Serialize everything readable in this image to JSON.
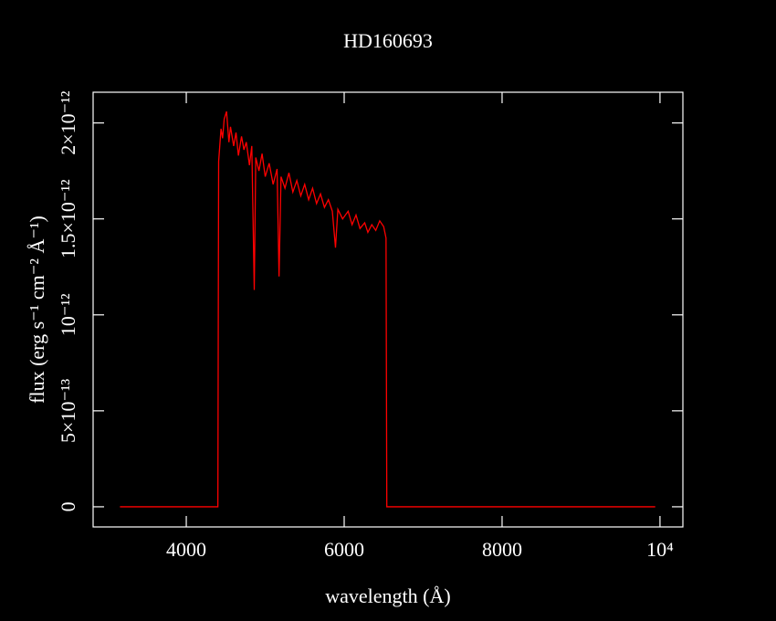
{
  "chart_data": {
    "type": "line",
    "title": "HD160693",
    "x_label": "wavelength (Å)",
    "y_label": "flux (erg s⁻¹ cm⁻² Å⁻¹)",
    "x": [
      3160,
      4400,
      4410,
      4440,
      4460,
      4480,
      4510,
      4540,
      4560,
      4600,
      4630,
      4660,
      4700,
      4730,
      4760,
      4800,
      4830,
      4861,
      4880,
      4920,
      4960,
      5000,
      5050,
      5100,
      5150,
      5175,
      5200,
      5250,
      5300,
      5350,
      5400,
      5450,
      5500,
      5550,
      5600,
      5650,
      5700,
      5750,
      5800,
      5850,
      5890,
      5920,
      5980,
      6050,
      6100,
      6150,
      6200,
      6260,
      6300,
      6350,
      6400,
      6450,
      6500,
      6530,
      6540,
      9940
    ],
    "values": [
      0,
      0,
      1.8e-12,
      1.97e-12,
      1.92e-12,
      2.02e-12,
      2.06e-12,
      1.9e-12,
      1.98e-12,
      1.88e-12,
      1.95e-12,
      1.83e-12,
      1.93e-12,
      1.86e-12,
      1.9e-12,
      1.78e-12,
      1.88e-12,
      1.13e-12,
      1.82e-12,
      1.75e-12,
      1.84e-12,
      1.72e-12,
      1.79e-12,
      1.68e-12,
      1.76e-12,
      1.2e-12,
      1.72e-12,
      1.66e-12,
      1.74e-12,
      1.64e-12,
      1.7e-12,
      1.62e-12,
      1.68e-12,
      1.6e-12,
      1.66e-12,
      1.58e-12,
      1.63e-12,
      1.56e-12,
      1.6e-12,
      1.54e-12,
      1.35e-12,
      1.55e-12,
      1.5e-12,
      1.54e-12,
      1.47e-12,
      1.52e-12,
      1.45e-12,
      1.48e-12,
      1.43e-12,
      1.47e-12,
      1.44e-12,
      1.49e-12,
      1.46e-12,
      1.4e-12,
      0,
      0
    ],
    "color": "#ff0000",
    "xlim": [
      2820,
      10290
    ],
    "ylim": [
      -1.05e-13,
      2.16e-12
    ],
    "xticks": [
      4000,
      6000,
      8000,
      {
        "value": 10000,
        "label": "10⁴"
      }
    ],
    "yticks": [
      0,
      {
        "value": 5e-13,
        "label": "5×10⁻¹³"
      },
      {
        "value": 1e-12,
        "label": "10⁻¹²"
      },
      {
        "value": 1.5e-12,
        "label": "1.5×10⁻¹²"
      },
      {
        "value": 2e-12,
        "label": "2×10⁻¹²"
      }
    ]
  }
}
